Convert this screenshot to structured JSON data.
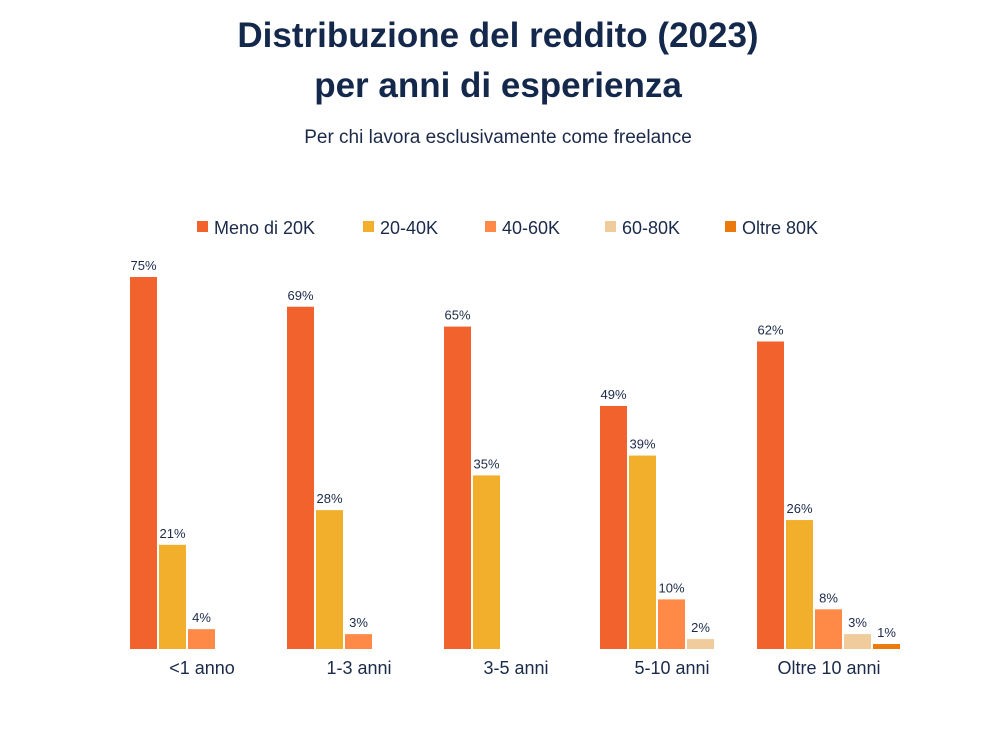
{
  "chart_data": {
    "type": "bar",
    "title_line1": "Distribuzione del reddito (2023)",
    "title_line2": "per anni di esperienza",
    "subtitle": "Per chi lavora esclusivamente come freelance",
    "categories": [
      "<1 anno",
      "1-3 anni",
      "3-5 anni",
      "5-10 anni",
      "Oltre 10 anni"
    ],
    "series": [
      {
        "name": "Meno di 20K",
        "color": "#F2622D",
        "values": [
          75,
          69,
          65,
          49,
          62
        ]
      },
      {
        "name": "20-40K",
        "color": "#F2AF2C",
        "values": [
          21,
          28,
          35,
          39,
          26
        ]
      },
      {
        "name": "40-60K",
        "color": "#FF8A48",
        "values": [
          4,
          3,
          null,
          10,
          8
        ]
      },
      {
        "name": "60-80K",
        "color": "#F0CB9B",
        "values": [
          null,
          null,
          null,
          2,
          3
        ]
      },
      {
        "name": "Oltre 80K",
        "color": "#EA7A0C",
        "values": [
          null,
          null,
          null,
          null,
          1
        ]
      }
    ],
    "value_suffix": "%",
    "legend": "top",
    "grid": false
  }
}
